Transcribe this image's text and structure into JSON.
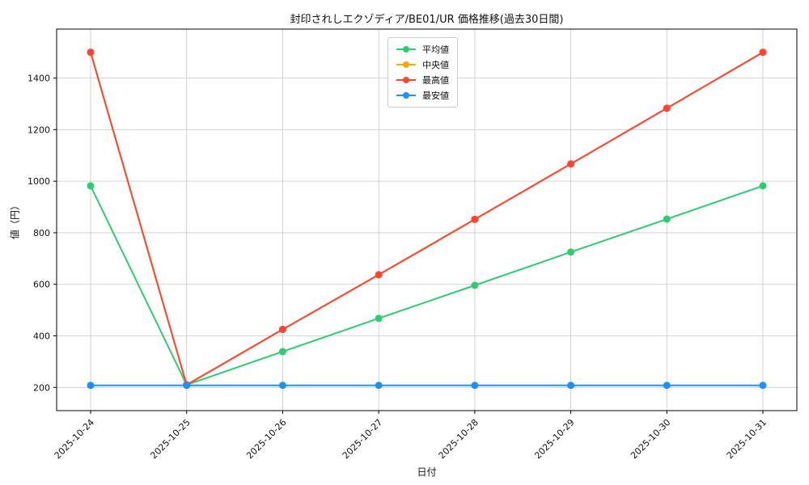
{
  "chart_data": {
    "type": "line",
    "title": "封印されしエクゾディア/BE01/UR 価格推移(過去30日間)",
    "xlabel": "日付",
    "ylabel": "値（円）",
    "categories": [
      "2025-10-24",
      "2025-10-25",
      "2025-10-26",
      "2025-10-27",
      "2025-10-28",
      "2025-10-29",
      "2025-10-30",
      "2025-10-31"
    ],
    "series": [
      {
        "name": "平均値",
        "color": "#2ecc71",
        "values": [
          982,
          210,
          339,
          468,
          596,
          725,
          853,
          982
        ]
      },
      {
        "name": "中央値",
        "color": "#ffa502",
        "values": [
          1500,
          210,
          425,
          637,
          852,
          1067,
          1283,
          1500
        ]
      },
      {
        "name": "最高値",
        "color": "#ff4433",
        "values": [
          1500,
          210,
          425,
          637,
          852,
          1067,
          1283,
          1500
        ]
      },
      {
        "name": "最安値",
        "color": "#1e90ff",
        "values": [
          208,
          208,
          208,
          208,
          208,
          208,
          208,
          208
        ]
      }
    ],
    "yticks": [
      200,
      400,
      600,
      800,
      1000,
      1200,
      1400
    ],
    "ylim": [
      110,
      1590
    ],
    "grid": true,
    "grid_color": "#c8c8c8",
    "axis_color": "#000000",
    "legend_position": "upper center"
  }
}
